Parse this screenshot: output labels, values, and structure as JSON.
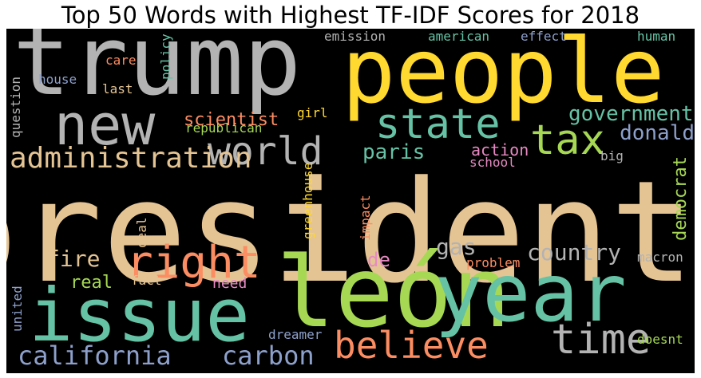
{
  "chart_data": {
    "type": "wordcloud",
    "title": "Top 50 Words with Highest TF-IDF Scores for 2018",
    "words": [
      {
        "text": "president",
        "color": "#e5c494"
      },
      {
        "text": "trump",
        "color": "#b3b3b3"
      },
      {
        "text": "people",
        "color": "#ffd92f"
      },
      {
        "text": "león",
        "color": "#a6d854"
      },
      {
        "text": "year",
        "color": "#66c2a5"
      },
      {
        "text": "issue",
        "color": "#66c2a5"
      },
      {
        "text": "new",
        "color": "#b3b3b3"
      },
      {
        "text": "state",
        "color": "#66c2a5"
      },
      {
        "text": "tax",
        "color": "#a6d854"
      },
      {
        "text": "world",
        "color": "#b3b3b3"
      },
      {
        "text": "right",
        "color": "#fc8d62"
      },
      {
        "text": "time",
        "color": "#b3b3b3"
      },
      {
        "text": "believe",
        "color": "#fc8d62"
      },
      {
        "text": "administration",
        "color": "#e5c494"
      },
      {
        "text": "government",
        "color": "#66c2a5"
      },
      {
        "text": "california",
        "color": "#8da0cb"
      },
      {
        "text": "carbon",
        "color": "#8da0cb"
      },
      {
        "text": "country",
        "color": "#b3b3b3"
      },
      {
        "text": "donald",
        "color": "#8da0cb"
      },
      {
        "text": "paris",
        "color": "#66c2a5"
      },
      {
        "text": "fire",
        "color": "#e5c494"
      },
      {
        "text": "gas",
        "color": "#b3b3b3"
      },
      {
        "text": "scientist",
        "color": "#fc8d62"
      },
      {
        "text": "democrat",
        "color": "#a6d854"
      },
      {
        "text": "action",
        "color": "#e78ac3"
      },
      {
        "text": "de",
        "color": "#e78ac3"
      },
      {
        "text": "real",
        "color": "#a6d854"
      },
      {
        "text": "need",
        "color": "#e78ac3"
      },
      {
        "text": "republican",
        "color": "#a6d854"
      },
      {
        "text": "emission",
        "color": "#b3b3b3"
      },
      {
        "text": "american",
        "color": "#66c2a5"
      },
      {
        "text": "effect",
        "color": "#8da0cb"
      },
      {
        "text": "human",
        "color": "#66c2a5"
      },
      {
        "text": "policy",
        "color": "#66c2a5"
      },
      {
        "text": "care",
        "color": "#fc8d62"
      },
      {
        "text": "house",
        "color": "#8da0cb"
      },
      {
        "text": "last",
        "color": "#e5c494"
      },
      {
        "text": "girl",
        "color": "#ffd92f"
      },
      {
        "text": "school",
        "color": "#e78ac3"
      },
      {
        "text": "big",
        "color": "#b3b3b3"
      },
      {
        "text": "greenhouse",
        "color": "#ffd92f"
      },
      {
        "text": "impact",
        "color": "#fc8d62"
      },
      {
        "text": "deal",
        "color": "#e5c494"
      },
      {
        "text": "fact",
        "color": "#e5c494"
      },
      {
        "text": "problem",
        "color": "#fc8d62"
      },
      {
        "text": "macron",
        "color": "#b3b3b3"
      },
      {
        "text": "question",
        "color": "#b3b3b3"
      },
      {
        "text": "united",
        "color": "#8da0cb"
      },
      {
        "text": "dreamer",
        "color": "#8da0cb"
      },
      {
        "text": "doesnt",
        "color": "#a6d854"
      }
    ]
  }
}
